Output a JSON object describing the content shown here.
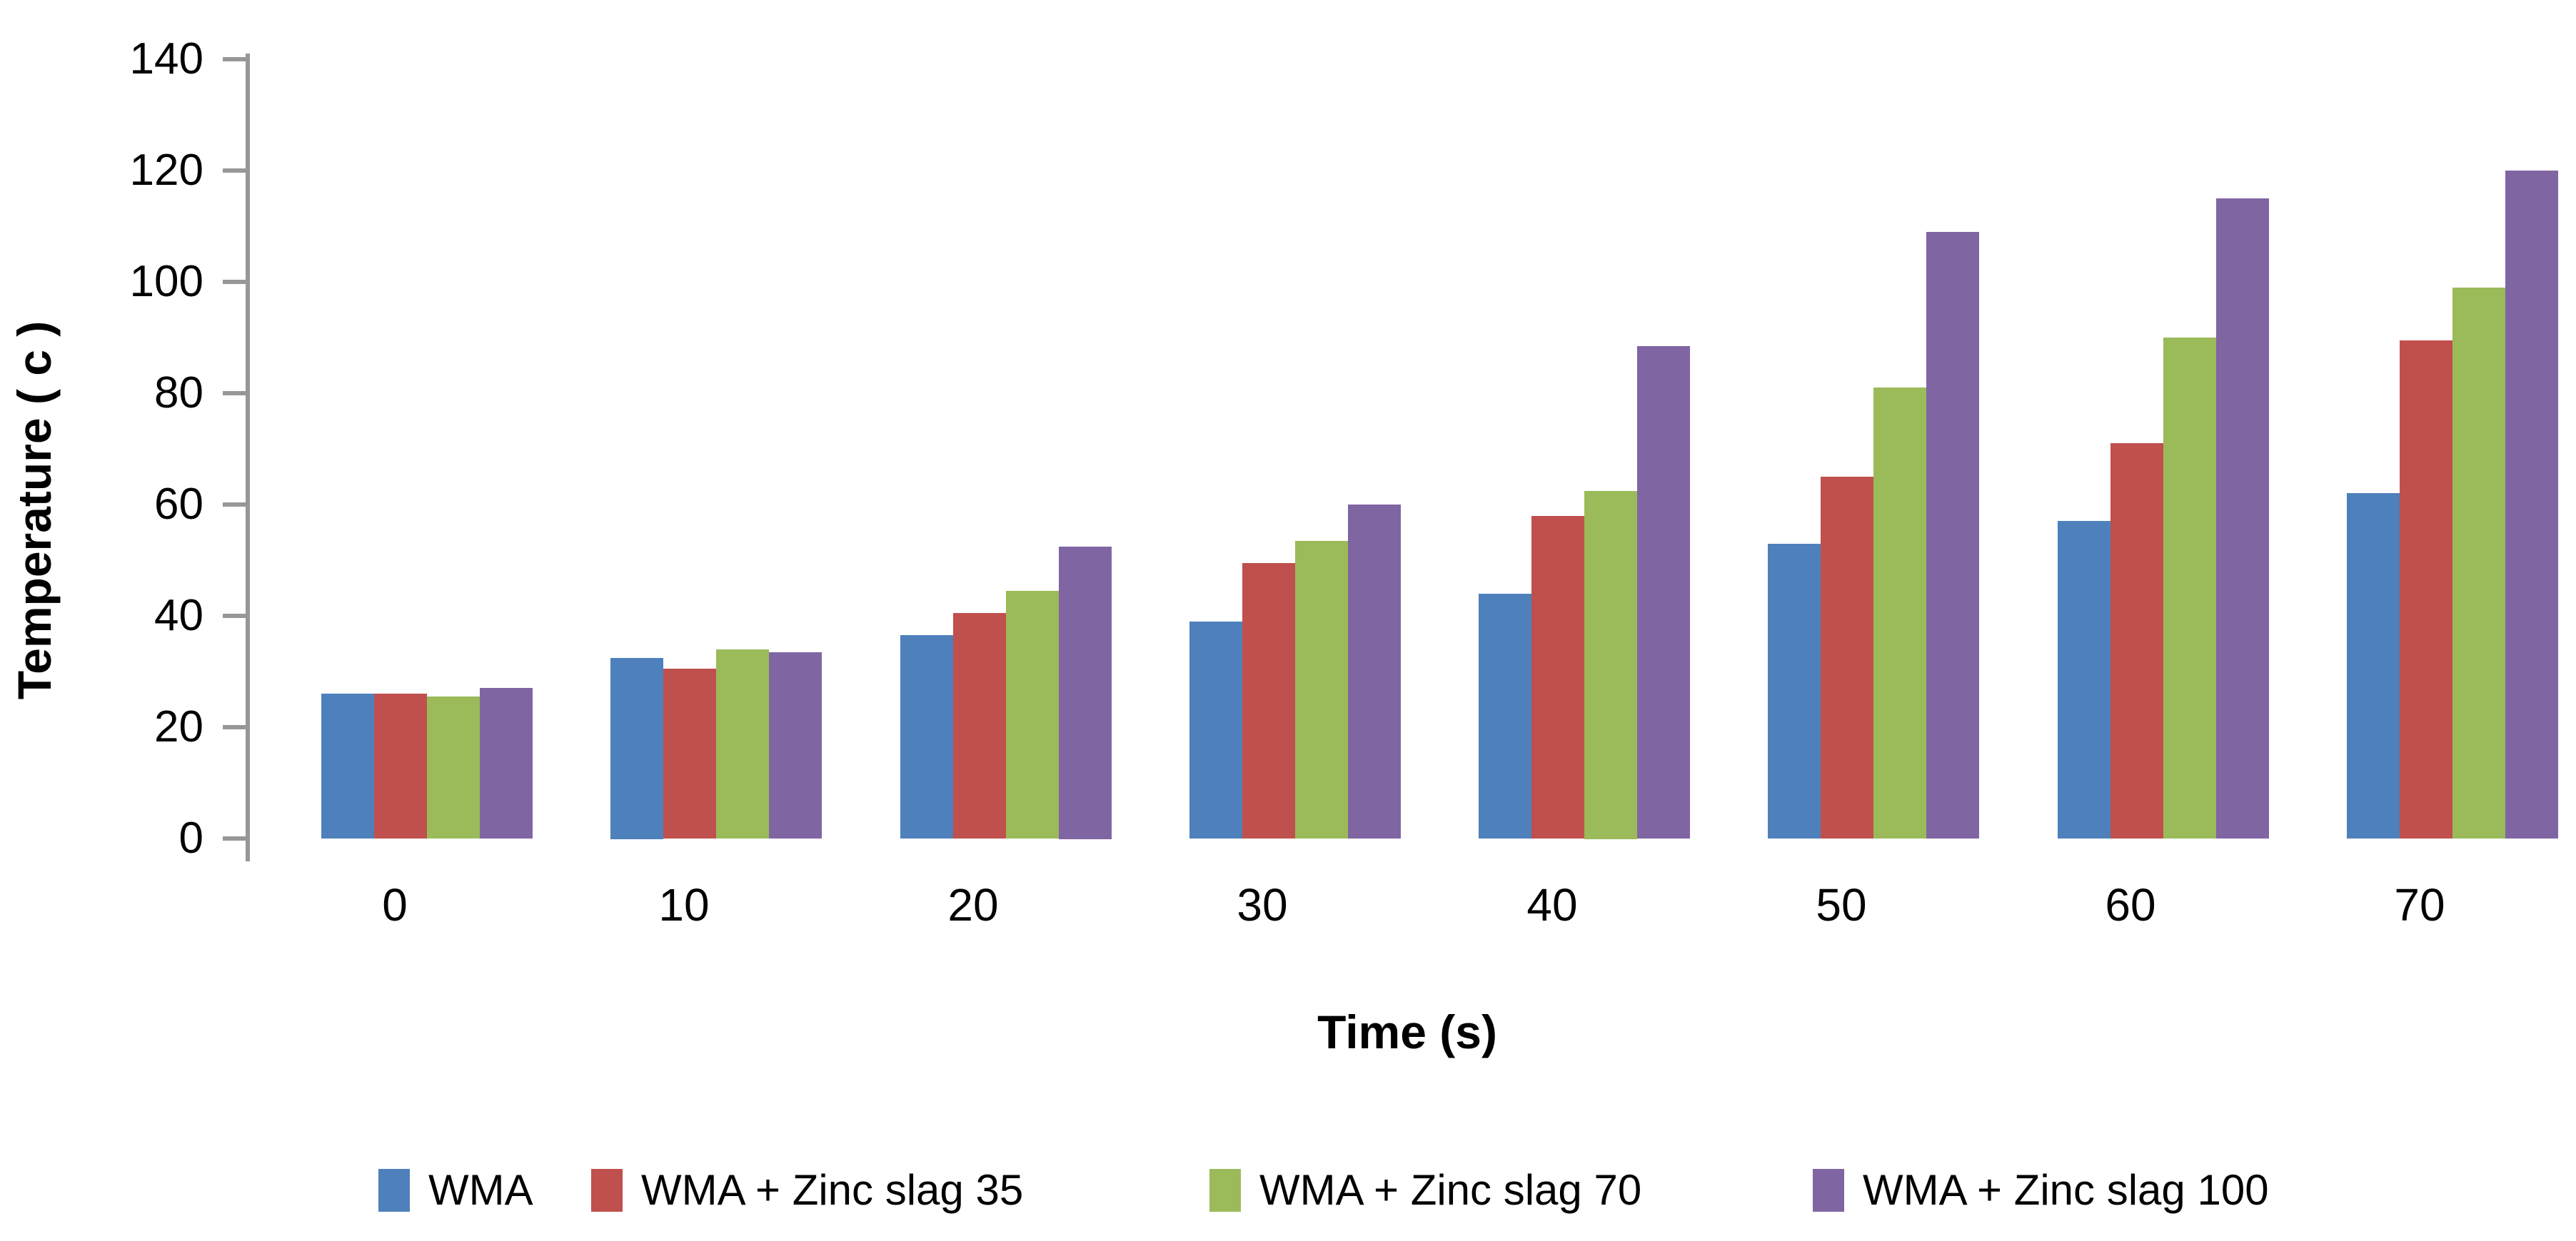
{
  "chart_data": {
    "type": "bar",
    "title": "",
    "xlabel": "Time (s)",
    "ylabel": "Temperature ( c )",
    "categories": [
      "0",
      "10",
      "20",
      "30",
      "40",
      "50",
      "60",
      "70"
    ],
    "ylim": [
      0,
      140
    ],
    "ytick_step": 20,
    "ytick_labels": [
      "0",
      "20",
      "40",
      "60",
      "80",
      "100",
      "120",
      "140"
    ],
    "grid": false,
    "legend_position": "bottom",
    "axis_color": "#979797",
    "background_color": "#ffffff",
    "text_color": "#000000",
    "series": [
      {
        "name": "WMA",
        "color": "#4E80BC",
        "values": [
          26,
          32.5,
          36.5,
          39,
          44,
          53,
          57,
          62
        ]
      },
      {
        "name": "WMA + Zinc slag 35",
        "color": "#C0504D",
        "values": [
          26,
          30.5,
          40.5,
          49.5,
          58,
          65,
          71,
          89.5
        ]
      },
      {
        "name": "WMA + Zinc slag 70",
        "color": "#9BBA59",
        "values": [
          25.5,
          34,
          44.5,
          53.5,
          62.5,
          81,
          90,
          99
        ]
      },
      {
        "name": "WMA + Zinc slag 100",
        "color": "#8065A3",
        "values": [
          27,
          33.5,
          52.5,
          60,
          88.5,
          109,
          115,
          120
        ]
      }
    ]
  }
}
